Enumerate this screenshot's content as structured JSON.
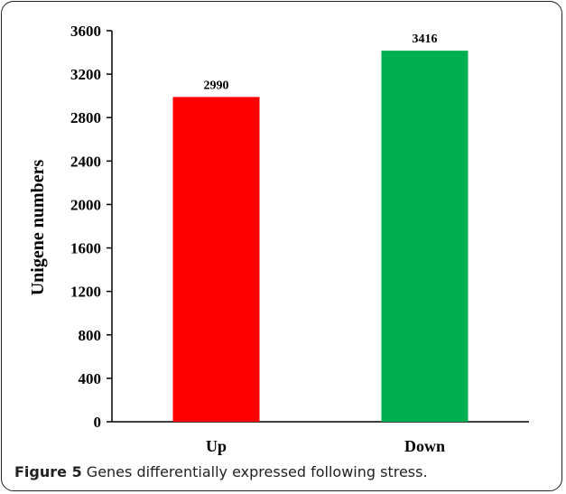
{
  "caption": {
    "figure_number": "Figure 5",
    "text": "Genes differentially expressed following stress."
  },
  "colors": {
    "up_bar": "#ff0000",
    "down_bar": "#00b050"
  },
  "chart_data": {
    "type": "bar",
    "categories": [
      "Up",
      "Down"
    ],
    "values": [
      2990,
      3416
    ],
    "bar_colors": [
      "#ff0000",
      "#00b050"
    ],
    "data_labels": [
      "2990",
      "3416"
    ],
    "title": "",
    "xlabel": "",
    "ylabel": "Unigene numbers",
    "ylim": [
      0,
      3600
    ],
    "yticks": [
      0,
      400,
      800,
      1200,
      1600,
      2000,
      2400,
      2800,
      3200,
      3600
    ],
    "grid": false,
    "legend": "none"
  }
}
